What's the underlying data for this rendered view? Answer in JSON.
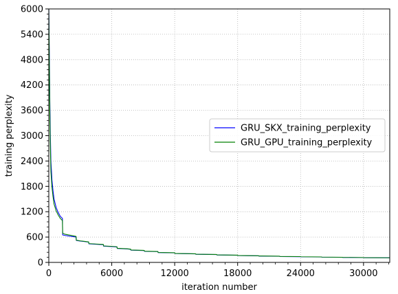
{
  "chart_data": {
    "type": "line",
    "xlabel": "iteration number",
    "ylabel": "training perplexity",
    "xlim": [
      0,
      32500
    ],
    "ylim": [
      0,
      6000
    ],
    "x_ticks": [
      0,
      6000,
      12000,
      18000,
      24000,
      30000
    ],
    "x_tick_labels": [
      "0",
      "6000",
      "12000",
      "18000",
      "24000",
      "30000"
    ],
    "y_ticks": [
      0,
      600,
      1200,
      1800,
      2400,
      3000,
      3600,
      4200,
      4800,
      5400,
      6000
    ],
    "y_tick_labels": [
      "0",
      "600",
      "1200",
      "1800",
      "2400",
      "3000",
      "3600",
      "4200",
      "4800",
      "5400",
      "6000"
    ],
    "grid": true,
    "legend_position": "center-right",
    "series": [
      {
        "name": "GRU_SKX_training_perplexity",
        "color": "#0000ff",
        "x": [
          0,
          50,
          100,
          150,
          200,
          300,
          400,
          500,
          700,
          900,
          1100,
          1300,
          1320,
          1500,
          2000,
          2600,
          2620,
          3000,
          3500,
          3800,
          3820,
          4500,
          5200,
          5220,
          6000,
          6500,
          6520,
          7500,
          7800,
          7820,
          9000,
          9100,
          9120,
          10300,
          10400,
          10420,
          12000,
          12020,
          14000,
          14020,
          16000,
          16020,
          18000,
          18020,
          20000,
          20020,
          22000,
          22020,
          24000,
          24020,
          26000,
          26020,
          28000,
          28020,
          30000,
          30020,
          32500
        ],
        "y": [
          6000,
          5000,
          3800,
          3000,
          2400,
          1950,
          1700,
          1500,
          1300,
          1180,
          1090,
          1040,
          650,
          640,
          620,
          600,
          520,
          505,
          490,
          480,
          440,
          430,
          420,
          385,
          375,
          365,
          330,
          318,
          310,
          290,
          282,
          280,
          262,
          256,
          254,
          232,
          226,
          210,
          202,
          192,
          186,
          176,
          170,
          162,
          156,
          150,
          145,
          140,
          136,
          132,
          128,
          124,
          120,
          117,
          114,
          110,
          108
        ]
      },
      {
        "name": "GRU_GPU_training_perplexity",
        "color": "#008000",
        "x": [
          0,
          50,
          100,
          150,
          200,
          300,
          400,
          500,
          700,
          900,
          1100,
          1300,
          1320,
          1500,
          2000,
          2600,
          2620,
          3000,
          3500,
          3800,
          3820,
          4500,
          5200,
          5220,
          6000,
          6500,
          6520,
          7500,
          7800,
          7820,
          9000,
          9100,
          9120,
          10300,
          10400,
          10420,
          12000,
          12020,
          14000,
          14020,
          16000,
          16020,
          18000,
          18020,
          20000,
          20020,
          22000,
          22020,
          24000,
          24020,
          26000,
          26020,
          28000,
          28020,
          30000,
          30020,
          32500
        ],
        "y": [
          6000,
          4700,
          3500,
          2700,
          2150,
          1780,
          1560,
          1380,
          1220,
          1120,
          1040,
          990,
          690,
          670,
          645,
          615,
          525,
          510,
          495,
          485,
          445,
          435,
          425,
          390,
          380,
          370,
          334,
          322,
          314,
          294,
          285,
          283,
          265,
          259,
          257,
          235,
          228,
          212,
          204,
          194,
          188,
          178,
          172,
          164,
          158,
          152,
          147,
          142,
          138,
          134,
          130,
          126,
          122,
          119,
          116,
          112,
          110
        ]
      }
    ]
  }
}
